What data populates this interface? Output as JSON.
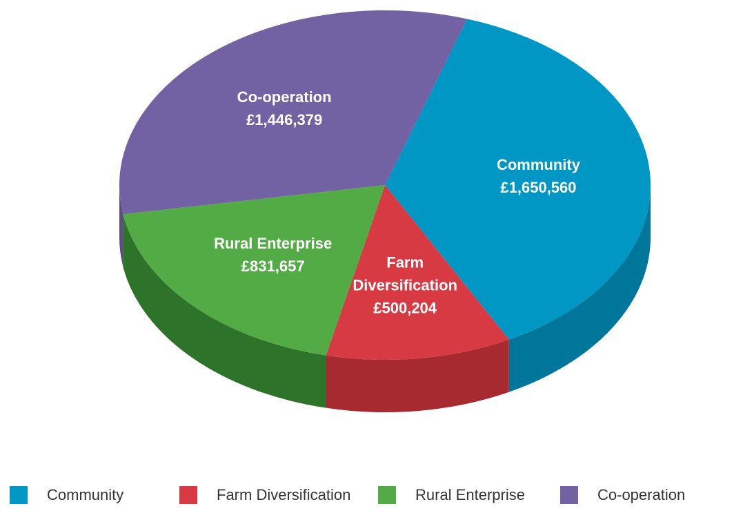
{
  "chart_data": {
    "type": "pie3d",
    "categories": [
      "Community",
      "Farm Diversification",
      "Rural Enterprise",
      "Co-operation"
    ],
    "values": [
      1650560,
      500204,
      831657,
      1446379
    ],
    "value_labels": [
      "£1,650,560",
      "£500,204",
      "£831,657",
      "£1,446,379"
    ],
    "colors": [
      "#0097c4",
      "#d83a44",
      "#52ab45",
      "#7261a3"
    ],
    "side_colors": [
      "#00779a",
      "#a72a31",
      "#2d7329",
      "#5a4c85"
    ],
    "legend": "bottom"
  }
}
